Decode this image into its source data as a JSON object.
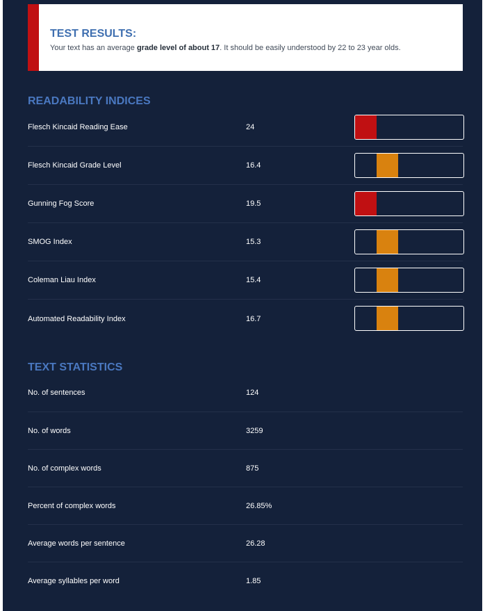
{
  "results": {
    "title": "TEST RESULTS:",
    "text_before": "Your text has an average ",
    "text_bold": "grade level of about 17",
    "text_after": ". It should be easily understood by 22 to 23 year olds.",
    "accent_color": "#c01012"
  },
  "readability": {
    "title": "READABILITY INDICES",
    "rows": [
      {
        "label": "Flesch Kincaid Reading Ease",
        "value": "24",
        "bar_level": 0.0,
        "bar_color": "#c01012"
      },
      {
        "label": "Flesch Kincaid Grade Level",
        "value": "16.4",
        "bar_level": 0.2,
        "bar_color": "#d9820f"
      },
      {
        "label": "Gunning Fog Score",
        "value": "19.5",
        "bar_level": 0.0,
        "bar_color": "#c01012"
      },
      {
        "label": "SMOG Index",
        "value": "15.3",
        "bar_level": 0.2,
        "bar_color": "#d9820f"
      },
      {
        "label": "Coleman Liau Index",
        "value": "15.4",
        "bar_level": 0.2,
        "bar_color": "#d9820f"
      },
      {
        "label": "Automated Readability Index",
        "value": "16.7",
        "bar_level": 0.2,
        "bar_color": "#d9820f"
      }
    ]
  },
  "statistics": {
    "title": "TEXT STATISTICS",
    "rows": [
      {
        "label": "No. of sentences",
        "value": "124"
      },
      {
        "label": "No. of words",
        "value": "3259"
      },
      {
        "label": "No. of complex words",
        "value": "875"
      },
      {
        "label": "Percent of complex words",
        "value": "26.85%"
      },
      {
        "label": "Average words per sentence",
        "value": "26.28"
      },
      {
        "label": "Average syllables per word",
        "value": "1.85"
      }
    ]
  },
  "colors": {
    "background": "#14213a",
    "heading": "#4a78c0",
    "red": "#c01012",
    "orange": "#d9820f"
  }
}
